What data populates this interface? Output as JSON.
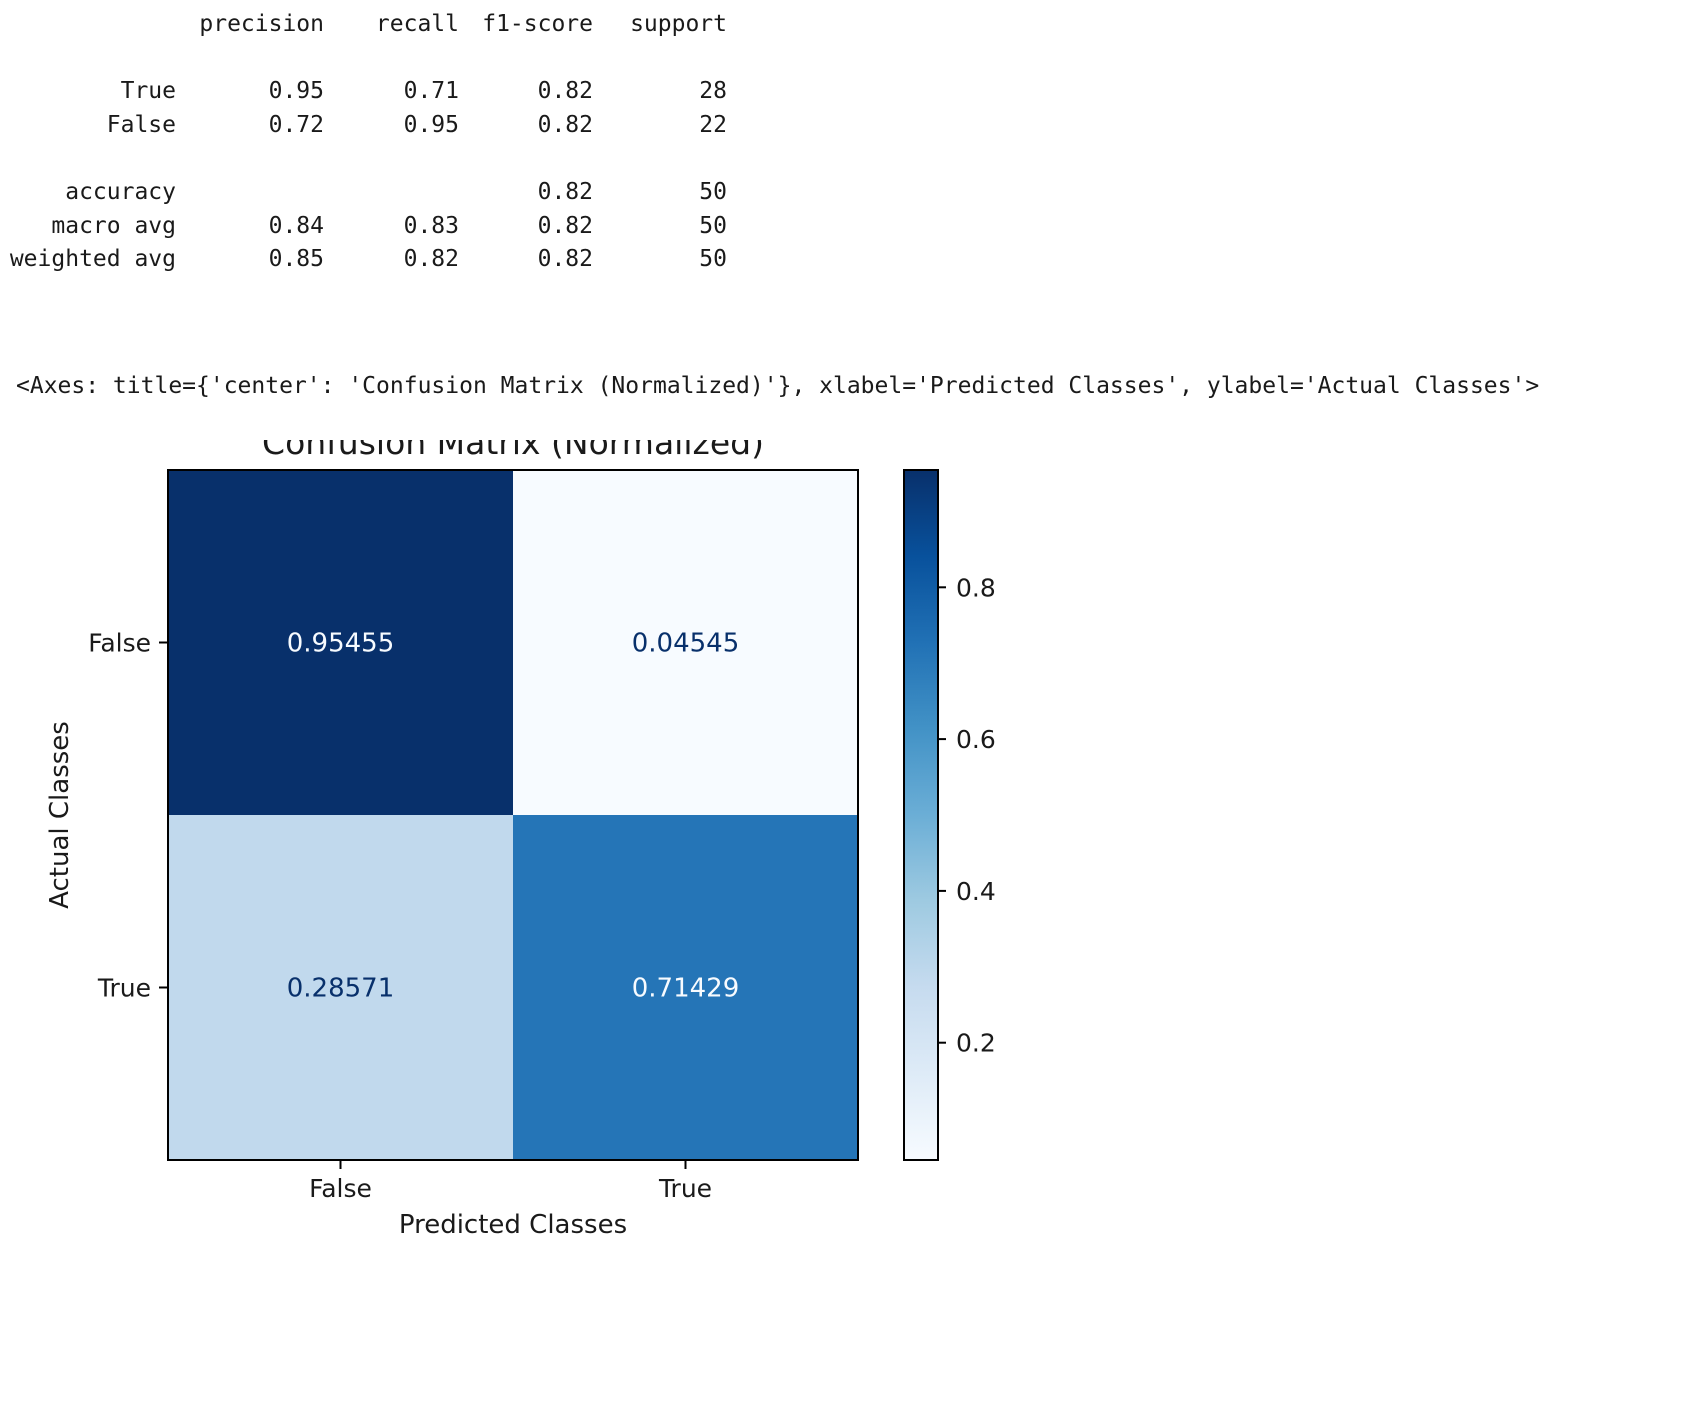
{
  "report": {
    "columns": [
      "precision",
      "recall",
      "f1-score",
      "support"
    ],
    "rows": [
      {
        "label": "True",
        "precision": "0.95",
        "recall": "0.71",
        "f1": "0.82",
        "support": "28"
      },
      {
        "label": "False",
        "precision": "0.72",
        "recall": "0.95",
        "f1": "0.82",
        "support": "22"
      },
      {
        "label": "accuracy",
        "precision": "",
        "recall": "",
        "f1": "0.82",
        "support": "50"
      },
      {
        "label": "macro avg",
        "precision": "0.84",
        "recall": "0.83",
        "f1": "0.82",
        "support": "50"
      },
      {
        "label": "weighted avg",
        "precision": "0.85",
        "recall": "0.82",
        "f1": "0.82",
        "support": "50"
      }
    ]
  },
  "axes_repr": "<Axes: title={'center': 'Confusion Matrix (Normalized)'}, xlabel='Predicted Classes', ylabel='Actual Classes'>",
  "chart_data": {
    "type": "heatmap",
    "title": "Confusion Matrix (Normalized)",
    "xlabel": "Predicted Classes",
    "ylabel": "Actual Classes",
    "x_categories": [
      "False",
      "True"
    ],
    "y_categories": [
      "False",
      "True"
    ],
    "values": [
      [
        0.95455,
        0.04545
      ],
      [
        0.28571,
        0.71429
      ]
    ],
    "value_labels": [
      [
        "0.95455",
        "0.04545"
      ],
      [
        "0.28571",
        "0.71429"
      ]
    ],
    "colormap": "Blues",
    "colorbar": {
      "min": 0.04545,
      "max": 0.95455,
      "ticks": [
        0.2,
        0.4,
        0.6,
        0.8
      ],
      "tick_labels": [
        "0.2",
        "0.4",
        "0.6",
        "0.8"
      ]
    }
  }
}
